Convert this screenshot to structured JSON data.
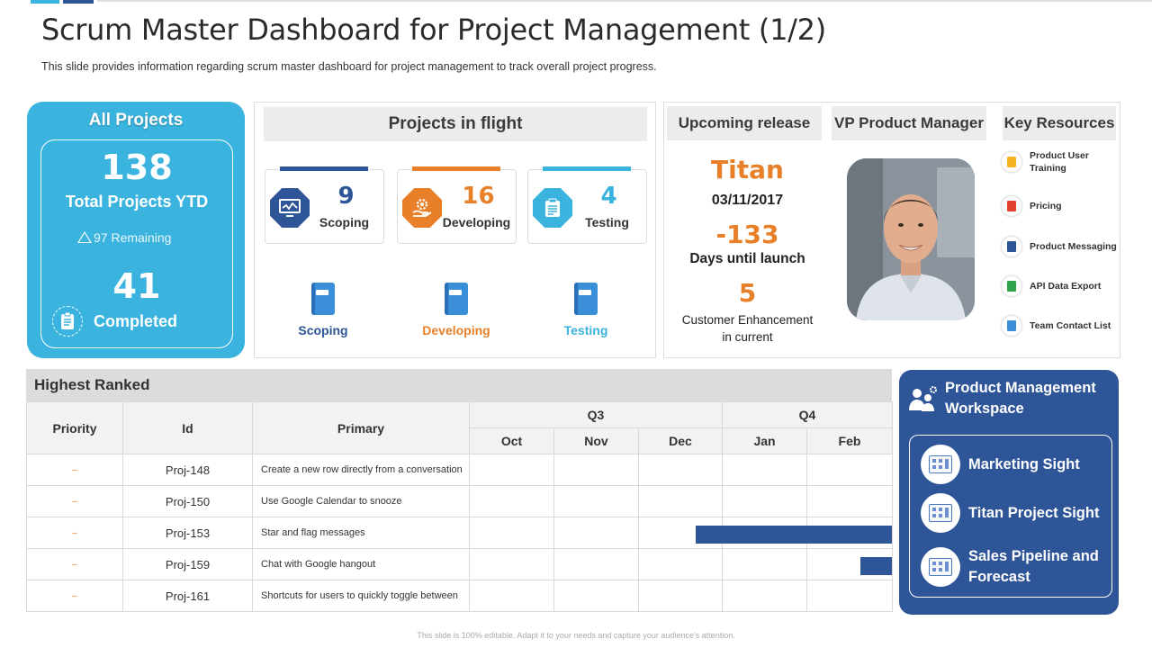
{
  "slide": {
    "title": "Scrum Master Dashboard for Project Management (1/2)",
    "subtitle": "This slide provides information regarding scrum master dashboard for project management to track overall project progress.",
    "footer": "This slide is 100% editable. Adapt it to your needs and capture your audience's attention.",
    "accent_colors": [
      "#3ab4de",
      "#2e5597",
      "#cfcfcf"
    ]
  },
  "all_projects": {
    "heading": "All Projects",
    "total_value": "138",
    "total_label": "Total Projects YTD",
    "remaining": "97 Remaining",
    "completed_value": "41",
    "completed_label": "Completed",
    "color": "#3ab4de"
  },
  "flight": {
    "heading": "Projects in flight",
    "stats": [
      {
        "value": "9",
        "label": "Scoping",
        "color": "#2e5597",
        "icon": "chart-monitor-icon"
      },
      {
        "value": "16",
        "label": "Developing",
        "color": "#e8802a",
        "icon": "gear-hand-icon"
      },
      {
        "value": "4",
        "label": "Testing",
        "color": "#3ab4de",
        "icon": "clipboard-icon"
      }
    ],
    "books": [
      {
        "label": "Scoping",
        "color": "#2e5597"
      },
      {
        "label": "Developing",
        "color": "#e8802a"
      },
      {
        "label": "Testing",
        "color": "#3ab4de"
      }
    ]
  },
  "release": {
    "heading": "Upcoming release",
    "name": "Titan",
    "date": "03/11/2017",
    "days_value": "-133",
    "days_label": "Days until launch",
    "enh_value": "5",
    "enh_label_1": "Customer Enhancement",
    "enh_label_2": "in current"
  },
  "vp": {
    "heading": "VP Product Manager"
  },
  "resources": {
    "heading": "Key Resources",
    "items": [
      {
        "line1": "Product User",
        "line2": "Training",
        "icon": "slides-icon",
        "color": "#f5b324"
      },
      {
        "line1": "Pricing",
        "line2": "",
        "icon": "pdf-icon",
        "color": "#e0402e"
      },
      {
        "line1": "Product Messaging",
        "line2": "",
        "icon": "word-icon",
        "color": "#2e5597"
      },
      {
        "line1": "API Data Export",
        "line2": "",
        "icon": "sheet-icon",
        "color": "#2ea44f"
      },
      {
        "line1": "Team Contact List",
        "line2": "",
        "icon": "contact-doc-icon",
        "color": "#3a8fd8"
      }
    ]
  },
  "ranked": {
    "heading": "Highest Ranked",
    "columns": {
      "priority": "Priority",
      "id": "Id",
      "primary": "Primary",
      "q3": "Q3",
      "q4": "Q4"
    },
    "months": [
      "Oct",
      "Nov",
      "Dec",
      "Jan",
      "Feb"
    ],
    "rows": [
      {
        "priority": "–",
        "id": "Proj-148",
        "primary": "Create a new row directly from a conversation"
      },
      {
        "priority": "–",
        "id": "Proj-150",
        "primary": "Use Google Calendar to snooze"
      },
      {
        "priority": "–",
        "id": "Proj-153",
        "primary": "Star and flag messages"
      },
      {
        "priority": "–",
        "id": "Proj-159",
        "primary": "Chat with Google hangout"
      },
      {
        "priority": "–",
        "id": "Proj-161",
        "primary": "Shortcuts for users to quickly toggle between"
      }
    ]
  },
  "workspace": {
    "heading_1": "Product Management",
    "heading_2": "Workspace",
    "items": [
      {
        "line1": "Marketing Sight",
        "line2": ""
      },
      {
        "line1": "Titan Project Sight",
        "line2": ""
      },
      {
        "line1": "Sales Pipeline and",
        "line2": "Forecast"
      }
    ]
  }
}
